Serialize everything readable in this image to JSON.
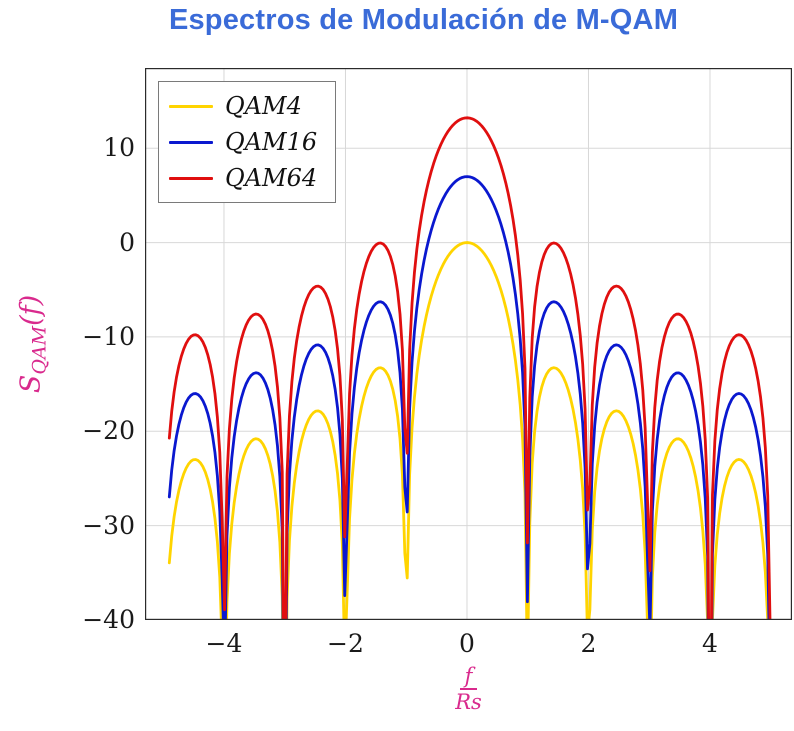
{
  "title": "Espectros de Modulación de M-QAM",
  "colors": {
    "title": "#3a6bd8",
    "axis_label": "#d92a8d",
    "grid": "#d8d8d8",
    "frame": "#2b2b2b",
    "legend_border": "#7a7a7a",
    "tick_text": "#1a1a1a",
    "background": "#ffffff"
  },
  "y_axis": {
    "base": "S",
    "sub": "QAM",
    "arg": "(f)",
    "full": "S_QAM(f)"
  },
  "x_axis": {
    "numerator": "f",
    "denominator": "Rs",
    "full": "f/Rs"
  },
  "chart_data": {
    "type": "line",
    "title": "Espectros de Modulación de M-QAM",
    "xlabel": "f/Rs",
    "ylabel": "S_QAM(f)",
    "xlim": [
      -5.3,
      5.35
    ],
    "ylim": [
      -40,
      18.5
    ],
    "x_ticks": [
      -4,
      -2,
      0,
      2,
      4
    ],
    "y_ticks": [
      -40,
      -30,
      -20,
      -10,
      0,
      10
    ],
    "grid": "major",
    "legend_position": "top-left",
    "model": "y_dB = offset_db + 10*log10(sinc(x)^2), sinc(x) = sin(pi*x)/(pi*x), nulls at integer f/Rs, clipped at y = -40 dB",
    "domain": [
      -4.9,
      4.99
    ],
    "samples": 250,
    "series": [
      {
        "name": "QAM4",
        "color": "#ffd400",
        "offset_db": 0,
        "peak_db": 0,
        "first_sidelobe_db": -13.3
      },
      {
        "name": "QAM16",
        "color": "#0a18cf",
        "offset_db": 6.99,
        "peak_db": 6.99,
        "first_sidelobe_db": -6.3
      },
      {
        "name": "QAM64",
        "color": "#e00f0f",
        "offset_db": 13.22,
        "peak_db": 13.22,
        "first_sidelobe_db": -0.1
      }
    ]
  }
}
